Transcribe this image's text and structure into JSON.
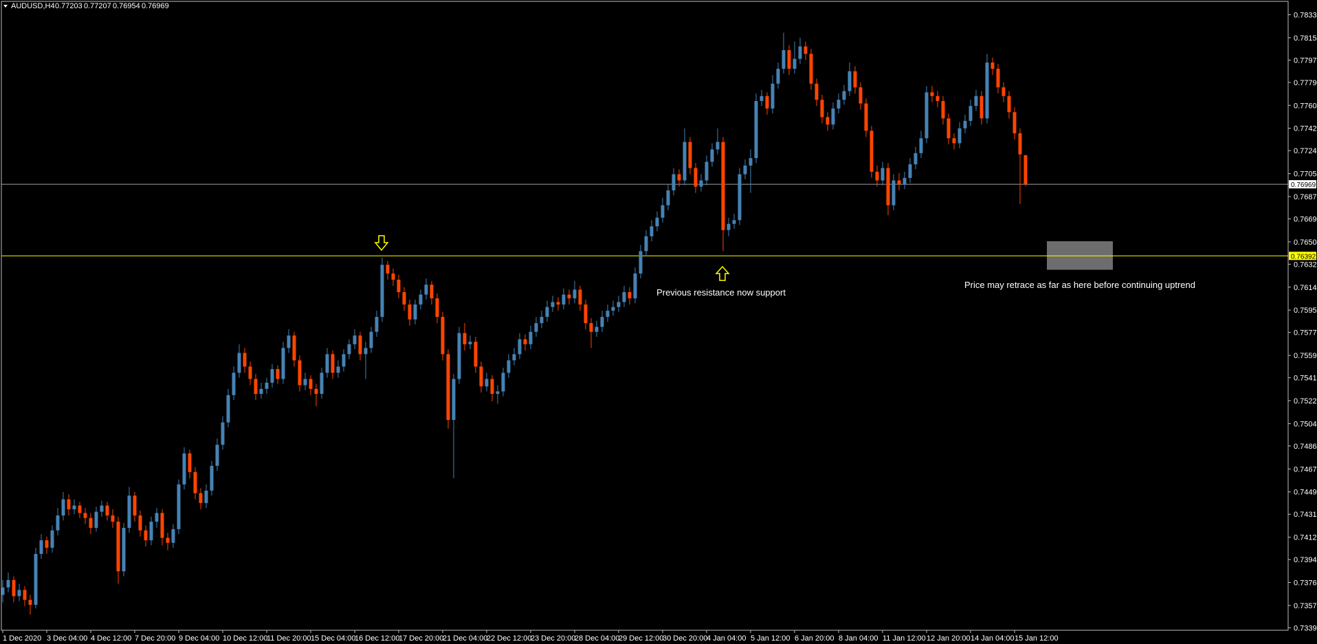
{
  "chart_data": {
    "type": "candlestick",
    "symbol": "AUDUSD,H4",
    "annotations": [
      "Previous resistance now support",
      "Price may retrace as far as here before continuing uptrend"
    ],
    "up_color": "#4682b4",
    "down_color": "#ff4500",
    "levels": [
      0.76969,
      0.76392
    ],
    "level_colors": [
      "#a0a0a0",
      "#ffff00"
    ],
    "zone": [
      0.7651,
      0.7628
    ],
    "ylim": [
      0.73375,
      0.78443
    ],
    "yticks": [
      0.78335,
      {
        "value": 0.7815,
        "label": "0.78150"
      },
      {
        "value": 0.7797,
        "label": "0.77970"
      },
      {
        "value": 0.7779,
        "label": "0.77790"
      },
      0.77605,
      {
        "value": 0.7742,
        "label": "0.77420"
      },
      {
        "value": 0.7724,
        "label": "0.77240"
      },
      0.77055,
      {
        "value": 0.7687,
        "label": "0.76870"
      },
      {
        "value": 0.7669,
        "label": "0.76690"
      },
      0.76505,
      0.76325,
      {
        "value": 0.7614,
        "label": "0.76140"
      },
      0.75955,
      0.75775,
      {
        "value": 0.7559,
        "label": "0.75590"
      },
      {
        "value": 0.7541,
        "label": "0.75410"
      },
      0.75225,
      {
        "value": 0.7504,
        "label": "0.75040"
      },
      {
        "value": 0.7486,
        "label": "0.74860"
      },
      0.74675,
      {
        "value": 0.7449,
        "label": "0.74490"
      },
      {
        "value": 0.7431,
        "label": "0.74310"
      },
      0.74125,
      0.73945,
      {
        "value": 0.7376,
        "label": "0.73760"
      },
      0.73575,
      0.73395
    ],
    "categories": [
      "1 Dec 2020",
      null,
      null,
      null,
      null,
      null,
      null,
      null,
      "3 Dec 04:00",
      null,
      null,
      null,
      null,
      null,
      null,
      null,
      "4 Dec 12:00",
      null,
      null,
      null,
      null,
      null,
      null,
      null,
      "7 Dec 20:00",
      null,
      null,
      null,
      null,
      null,
      null,
      null,
      "9 Dec 04:00",
      null,
      null,
      null,
      null,
      null,
      null,
      null,
      "10 Dec 12:00",
      null,
      null,
      null,
      null,
      null,
      null,
      null,
      "11 Dec 20:00",
      null,
      null,
      null,
      null,
      null,
      null,
      null,
      "15 Dec 04:00",
      null,
      null,
      null,
      null,
      null,
      null,
      null,
      "16 Dec 12:00",
      null,
      null,
      null,
      null,
      null,
      null,
      null,
      "17 Dec 20:00",
      null,
      null,
      null,
      null,
      null,
      null,
      null,
      "21 Dec 04:00",
      null,
      null,
      null,
      null,
      null,
      null,
      null,
      "22 Dec 12:00",
      null,
      null,
      null,
      null,
      null,
      null,
      null,
      "23 Dec 20:00",
      null,
      null,
      null,
      null,
      null,
      null,
      null,
      "28 Dec 04:00",
      null,
      null,
      null,
      null,
      null,
      null,
      null,
      "29 Dec 12:00",
      null,
      null,
      null,
      null,
      null,
      null,
      null,
      "30 Dec 20:00",
      null,
      null,
      null,
      null,
      null,
      null,
      null,
      "4 Jan 04:00",
      null,
      null,
      null,
      null,
      null,
      null,
      null,
      "5 Jan 12:00",
      null,
      null,
      null,
      null,
      null,
      null,
      null,
      "6 Jan 20:00",
      null,
      null,
      null,
      null,
      null,
      null,
      null,
      "8 Jan 04:00",
      null,
      null,
      null,
      null,
      null,
      null,
      null,
      "11 Jan 12:00",
      null,
      null,
      null,
      null,
      null,
      null,
      null,
      "12 Jan 20:00",
      null,
      null,
      null,
      null,
      null,
      null,
      null,
      "14 Jan 04:00",
      null,
      null,
      null,
      null,
      null,
      null,
      null,
      "15 Jan 12:00",
      null,
      null
    ],
    "candles": [
      [
        0.7366,
        0.7378,
        0.736,
        0.7372
      ],
      [
        0.7372,
        0.7384,
        0.7368,
        0.7378
      ],
      [
        0.7378,
        0.7381,
        0.736,
        0.7365
      ],
      [
        0.7365,
        0.7375,
        0.7361,
        0.737
      ],
      [
        0.737,
        0.7373,
        0.7357,
        0.7362
      ],
      [
        0.7362,
        0.7366,
        0.735,
        0.7358
      ],
      [
        0.7358,
        0.7404,
        0.7355,
        0.7399
      ],
      [
        0.7399,
        0.7415,
        0.7395,
        0.741
      ],
      [
        0.741,
        0.7413,
        0.7399,
        0.7404
      ],
      [
        0.7404,
        0.7422,
        0.74,
        0.7418
      ],
      [
        0.7418,
        0.7436,
        0.7414,
        0.743
      ],
      [
        0.743,
        0.7449,
        0.7426,
        0.7443
      ],
      [
        0.7443,
        0.7447,
        0.743,
        0.7435
      ],
      [
        0.7435,
        0.7443,
        0.7431,
        0.7438
      ],
      [
        0.7438,
        0.7441,
        0.7428,
        0.7432
      ],
      [
        0.7432,
        0.7436,
        0.7423,
        0.7428
      ],
      [
        0.7428,
        0.7432,
        0.7415,
        0.742
      ],
      [
        0.742,
        0.7437,
        0.7417,
        0.7433
      ],
      [
        0.7433,
        0.7442,
        0.7429,
        0.7438
      ],
      [
        0.7438,
        0.7441,
        0.7426,
        0.743
      ],
      [
        0.743,
        0.7435,
        0.742,
        0.7425
      ],
      [
        0.7425,
        0.7429,
        0.7375,
        0.7385
      ],
      [
        0.7385,
        0.7424,
        0.7381,
        0.742
      ],
      [
        0.742,
        0.7453,
        0.7416,
        0.7446
      ],
      [
        0.7446,
        0.7449,
        0.7425,
        0.743
      ],
      [
        0.743,
        0.7434,
        0.7413,
        0.7418
      ],
      [
        0.7418,
        0.7422,
        0.7405,
        0.741
      ],
      [
        0.741,
        0.7429,
        0.7406,
        0.7425
      ],
      [
        0.7425,
        0.7436,
        0.742,
        0.7432
      ],
      [
        0.7432,
        0.7435,
        0.7406,
        0.7412
      ],
      [
        0.7412,
        0.7416,
        0.7402,
        0.7408
      ],
      [
        0.7408,
        0.7423,
        0.7404,
        0.7419
      ],
      [
        0.7419,
        0.7459,
        0.7415,
        0.7455
      ],
      [
        0.7455,
        0.7485,
        0.7451,
        0.748
      ],
      [
        0.748,
        0.7483,
        0.746,
        0.7465
      ],
      [
        0.7465,
        0.7469,
        0.7443,
        0.7448
      ],
      [
        0.7448,
        0.7452,
        0.7435,
        0.744
      ],
      [
        0.744,
        0.7455,
        0.7436,
        0.745
      ],
      [
        0.745,
        0.7474,
        0.7446,
        0.747
      ],
      [
        0.747,
        0.7492,
        0.7466,
        0.7487
      ],
      [
        0.7487,
        0.751,
        0.7483,
        0.7505
      ],
      [
        0.7505,
        0.7532,
        0.7501,
        0.7527
      ],
      [
        0.7527,
        0.755,
        0.7523,
        0.7545
      ],
      [
        0.7545,
        0.7568,
        0.7541,
        0.7561
      ],
      [
        0.7561,
        0.7565,
        0.7545,
        0.755
      ],
      [
        0.755,
        0.7554,
        0.7535,
        0.754
      ],
      [
        0.754,
        0.7544,
        0.7523,
        0.7528
      ],
      [
        0.7528,
        0.7537,
        0.7524,
        0.7532
      ],
      [
        0.7532,
        0.7541,
        0.7528,
        0.7537
      ],
      [
        0.7537,
        0.7552,
        0.7533,
        0.7548
      ],
      [
        0.7548,
        0.7551,
        0.7536,
        0.754
      ],
      [
        0.754,
        0.757,
        0.7536,
        0.7565
      ],
      [
        0.7565,
        0.758,
        0.7561,
        0.7575
      ],
      [
        0.7575,
        0.7578,
        0.755,
        0.7555
      ],
      [
        0.7555,
        0.7559,
        0.753,
        0.7535
      ],
      [
        0.7535,
        0.7545,
        0.7531,
        0.754
      ],
      [
        0.754,
        0.7543,
        0.7527,
        0.7532
      ],
      [
        0.7532,
        0.7536,
        0.7518,
        0.7528
      ],
      [
        0.7528,
        0.7549,
        0.7524,
        0.7545
      ],
      [
        0.7545,
        0.7565,
        0.7541,
        0.756
      ],
      [
        0.756,
        0.7563,
        0.754,
        0.7545
      ],
      [
        0.7545,
        0.7555,
        0.7541,
        0.755
      ],
      [
        0.755,
        0.7564,
        0.7546,
        0.756
      ],
      [
        0.756,
        0.7572,
        0.7556,
        0.7568
      ],
      [
        0.7568,
        0.758,
        0.7564,
        0.7575
      ],
      [
        0.7575,
        0.7578,
        0.7555,
        0.756
      ],
      [
        0.756,
        0.757,
        0.754,
        0.7565
      ],
      [
        0.7565,
        0.7582,
        0.7561,
        0.7578
      ],
      [
        0.7578,
        0.7595,
        0.7574,
        0.759
      ],
      [
        0.759,
        0.7638,
        0.7586,
        0.7632
      ],
      [
        0.7632,
        0.7635,
        0.762,
        0.7625
      ],
      [
        0.7625,
        0.7629,
        0.7615,
        0.762
      ],
      [
        0.762,
        0.7624,
        0.7605,
        0.761
      ],
      [
        0.761,
        0.7614,
        0.7595,
        0.76
      ],
      [
        0.76,
        0.7604,
        0.7583,
        0.7588
      ],
      [
        0.7588,
        0.7604,
        0.7584,
        0.76
      ],
      [
        0.76,
        0.7612,
        0.7596,
        0.7608
      ],
      [
        0.7608,
        0.7621,
        0.7604,
        0.7616
      ],
      [
        0.7616,
        0.7619,
        0.76,
        0.7605
      ],
      [
        0.7605,
        0.7609,
        0.7585,
        0.759
      ],
      [
        0.759,
        0.7594,
        0.7555,
        0.756
      ],
      [
        0.756,
        0.7564,
        0.75,
        0.7507
      ],
      [
        0.7507,
        0.7544,
        0.746,
        0.754
      ],
      [
        0.754,
        0.7582,
        0.7536,
        0.7577
      ],
      [
        0.7577,
        0.7585,
        0.7563,
        0.7568
      ],
      [
        0.7568,
        0.7575,
        0.7564,
        0.757
      ],
      [
        0.757,
        0.7574,
        0.7545,
        0.755
      ],
      [
        0.755,
        0.7554,
        0.7529,
        0.7534
      ],
      [
        0.7534,
        0.7545,
        0.753,
        0.754
      ],
      [
        0.754,
        0.7543,
        0.7522,
        0.7528
      ],
      [
        0.7528,
        0.7535,
        0.752,
        0.753
      ],
      [
        0.753,
        0.7549,
        0.7526,
        0.7545
      ],
      [
        0.7545,
        0.756,
        0.7541,
        0.7555
      ],
      [
        0.7555,
        0.7565,
        0.7551,
        0.756
      ],
      [
        0.756,
        0.7577,
        0.7556,
        0.7572
      ],
      [
        0.7572,
        0.7576,
        0.7563,
        0.7568
      ],
      [
        0.7568,
        0.7583,
        0.7564,
        0.7578
      ],
      [
        0.7578,
        0.759,
        0.7574,
        0.7585
      ],
      [
        0.7585,
        0.7595,
        0.7581,
        0.759
      ],
      [
        0.759,
        0.7603,
        0.7586,
        0.7598
      ],
      [
        0.7598,
        0.7607,
        0.7594,
        0.7602
      ],
      [
        0.7602,
        0.7606,
        0.7595,
        0.76
      ],
      [
        0.76,
        0.7613,
        0.7596,
        0.7608
      ],
      [
        0.7608,
        0.7612,
        0.76,
        0.7605
      ],
      [
        0.7605,
        0.7619,
        0.7601,
        0.7612
      ],
      [
        0.7612,
        0.7615,
        0.7595,
        0.76
      ],
      [
        0.76,
        0.7604,
        0.758,
        0.7585
      ],
      [
        0.7585,
        0.7589,
        0.7565,
        0.7578
      ],
      [
        0.7578,
        0.7587,
        0.7574,
        0.7582
      ],
      [
        0.7582,
        0.7595,
        0.7578,
        0.759
      ],
      [
        0.759,
        0.76,
        0.7586,
        0.7595
      ],
      [
        0.7595,
        0.7603,
        0.7591,
        0.7598
      ],
      [
        0.7598,
        0.7607,
        0.7594,
        0.7602
      ],
      [
        0.7602,
        0.7615,
        0.7598,
        0.761
      ],
      [
        0.761,
        0.7614,
        0.76,
        0.7605
      ],
      [
        0.7605,
        0.763,
        0.7601,
        0.7625
      ],
      [
        0.7625,
        0.7648,
        0.7621,
        0.7643
      ],
      [
        0.7643,
        0.766,
        0.7639,
        0.7655
      ],
      [
        0.7655,
        0.7668,
        0.7651,
        0.7663
      ],
      [
        0.7663,
        0.7675,
        0.7659,
        0.767
      ],
      [
        0.767,
        0.7686,
        0.7666,
        0.768
      ],
      [
        0.768,
        0.7697,
        0.7676,
        0.7692
      ],
      [
        0.7692,
        0.771,
        0.7688,
        0.7705
      ],
      [
        0.7705,
        0.7709,
        0.7695,
        0.77
      ],
      [
        0.77,
        0.7742,
        0.7696,
        0.7731
      ],
      [
        0.7731,
        0.7735,
        0.7705,
        0.771
      ],
      [
        0.771,
        0.7714,
        0.769,
        0.7695
      ],
      [
        0.7695,
        0.7705,
        0.7691,
        0.77
      ],
      [
        0.77,
        0.772,
        0.7696,
        0.7715
      ],
      [
        0.7715,
        0.773,
        0.7711,
        0.7725
      ],
      [
        0.7725,
        0.7742,
        0.7721,
        0.7731
      ],
      [
        0.7731,
        0.7735,
        0.7643,
        0.766
      ],
      [
        0.766,
        0.767,
        0.7655,
        0.7665
      ],
      [
        0.7665,
        0.7673,
        0.7661,
        0.7668
      ],
      [
        0.7668,
        0.771,
        0.7664,
        0.7705
      ],
      [
        0.7705,
        0.7717,
        0.7701,
        0.7712
      ],
      [
        0.7712,
        0.7725,
        0.769,
        0.7718
      ],
      [
        0.7718,
        0.777,
        0.7714,
        0.7764
      ],
      [
        0.7764,
        0.7773,
        0.776,
        0.7768
      ],
      [
        0.7768,
        0.7771,
        0.7753,
        0.7758
      ],
      [
        0.7758,
        0.7785,
        0.7754,
        0.7778
      ],
      [
        0.7778,
        0.7795,
        0.7774,
        0.779
      ],
      [
        0.779,
        0.7819,
        0.7786,
        0.7805
      ],
      [
        0.7805,
        0.7809,
        0.7785,
        0.779
      ],
      [
        0.779,
        0.7812,
        0.7786,
        0.7798
      ],
      [
        0.7798,
        0.7815,
        0.7794,
        0.7808
      ],
      [
        0.7808,
        0.7812,
        0.7797,
        0.7802
      ],
      [
        0.7802,
        0.7806,
        0.7773,
        0.7778
      ],
      [
        0.7778,
        0.7782,
        0.776,
        0.7765
      ],
      [
        0.7765,
        0.7769,
        0.7746,
        0.7751
      ],
      [
        0.7751,
        0.7755,
        0.774,
        0.7745
      ],
      [
        0.7745,
        0.7763,
        0.7741,
        0.7758
      ],
      [
        0.7758,
        0.777,
        0.7754,
        0.7765
      ],
      [
        0.7765,
        0.7777,
        0.7761,
        0.7772
      ],
      [
        0.7772,
        0.7795,
        0.7768,
        0.7788
      ],
      [
        0.7788,
        0.7792,
        0.777,
        0.7775
      ],
      [
        0.7775,
        0.7779,
        0.7757,
        0.7762
      ],
      [
        0.7762,
        0.7766,
        0.7735,
        0.774
      ],
      [
        0.774,
        0.7744,
        0.7702,
        0.7707
      ],
      [
        0.7707,
        0.7712,
        0.7695,
        0.77
      ],
      [
        0.77,
        0.7715,
        0.7696,
        0.771
      ],
      [
        0.771,
        0.7714,
        0.7672,
        0.768
      ],
      [
        0.768,
        0.7705,
        0.7676,
        0.77
      ],
      [
        0.77,
        0.7706,
        0.7692,
        0.7697
      ],
      [
        0.7697,
        0.7707,
        0.7693,
        0.7702
      ],
      [
        0.7702,
        0.7718,
        0.7698,
        0.7713
      ],
      [
        0.7713,
        0.7727,
        0.7709,
        0.7722
      ],
      [
        0.7722,
        0.774,
        0.7718,
        0.7734
      ],
      [
        0.7734,
        0.7776,
        0.773,
        0.7771
      ],
      [
        0.7771,
        0.7776,
        0.7763,
        0.7768
      ],
      [
        0.7768,
        0.7772,
        0.7759,
        0.7764
      ],
      [
        0.7764,
        0.7768,
        0.7745,
        0.775
      ],
      [
        0.775,
        0.7754,
        0.7729,
        0.7734
      ],
      [
        0.7734,
        0.7738,
        0.7725,
        0.773
      ],
      [
        0.773,
        0.7747,
        0.7726,
        0.7742
      ],
      [
        0.7742,
        0.7753,
        0.7738,
        0.7748
      ],
      [
        0.7748,
        0.7765,
        0.7744,
        0.776
      ],
      [
        0.776,
        0.7773,
        0.7756,
        0.7768
      ],
      [
        0.7768,
        0.7772,
        0.7745,
        0.775
      ],
      [
        0.775,
        0.7802,
        0.7746,
        0.7795
      ],
      [
        0.7795,
        0.7799,
        0.7785,
        0.779
      ],
      [
        0.779,
        0.7794,
        0.777,
        0.7775
      ],
      [
        0.7775,
        0.7779,
        0.7763,
        0.7768
      ],
      [
        0.7768,
        0.7772,
        0.775,
        0.7755
      ],
      [
        0.7755,
        0.7759,
        0.7733,
        0.7738
      ],
      [
        0.7738,
        0.7742,
        0.7681,
        0.7721
      ],
      [
        0.77203,
        0.77207,
        0.76954,
        0.76969
      ]
    ]
  }
}
